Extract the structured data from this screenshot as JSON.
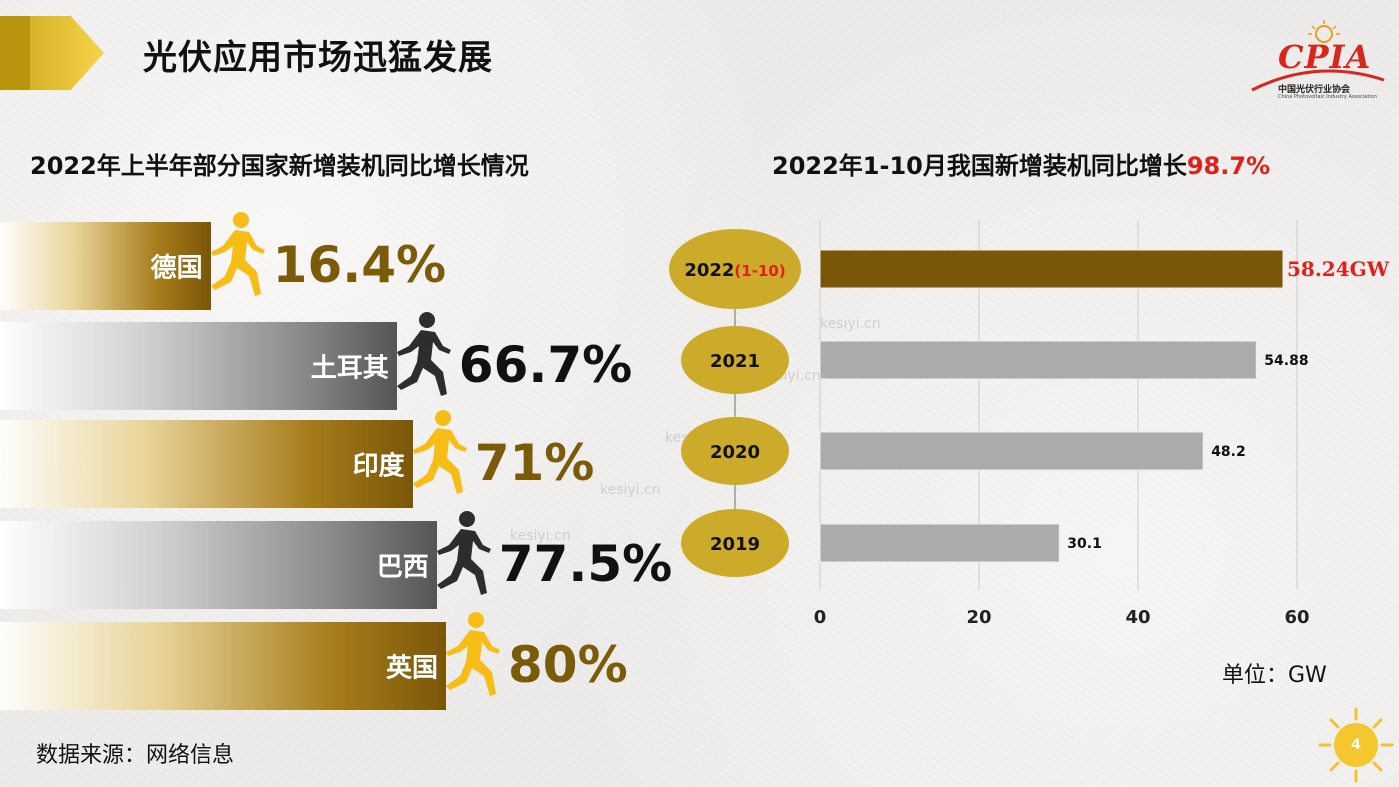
{
  "header": {
    "title": "光伏应用市场迅猛发展"
  },
  "logo": {
    "text": "CPIA",
    "subtitle": "中国光伏行业协会",
    "subtitle_en": "China Photovoltaic Industry Association"
  },
  "left_section": {
    "title": "2022年上半年部分国家新增装机同比增长情况"
  },
  "right_section": {
    "title_prefix": "2022年1-10月我国新增装机同比增长",
    "title_highlight": "98.7%"
  },
  "colors": {
    "gold": "#7a5b0a",
    "bar_gold": "#7a5608",
    "bar_gray": "#adaaaa",
    "highlight_red": "#e0201a",
    "ellipse_gold": "#ccaa2a"
  },
  "chart_data": [
    {
      "type": "bar",
      "orientation": "horizontal",
      "title": "2022年上半年部分国家新增装机同比增长情况",
      "categories": [
        "德国",
        "土耳其",
        "印度",
        "巴西",
        "英国"
      ],
      "values": [
        16.4,
        66.7,
        71,
        77.5,
        80
      ],
      "value_labels": [
        "16.4%",
        "66.7%",
        "71%",
        "77.5%",
        "80%"
      ],
      "bar_styles": [
        "gold",
        "gray",
        "gold",
        "gray",
        "gold"
      ]
    },
    {
      "type": "bar",
      "orientation": "horizontal",
      "title": "2022年1-10月我国新增装机同比增长98.7%",
      "categories": [
        "2022",
        "2021",
        "2020",
        "2019"
      ],
      "category_suffix": [
        "(1-10)",
        "",
        "",
        ""
      ],
      "values": [
        58.24,
        54.88,
        48.2,
        30.1
      ],
      "value_labels": [
        "58.24GW",
        "54.88",
        "48.2",
        "30.1"
      ],
      "xlim": [
        0,
        60
      ],
      "xticks": [
        "0",
        "20",
        "40",
        "60"
      ],
      "grid": true
    }
  ],
  "unit": "单位：GW",
  "source": "数据来源：网络信息",
  "page_number": "4",
  "watermark": "kesiyi.cn"
}
